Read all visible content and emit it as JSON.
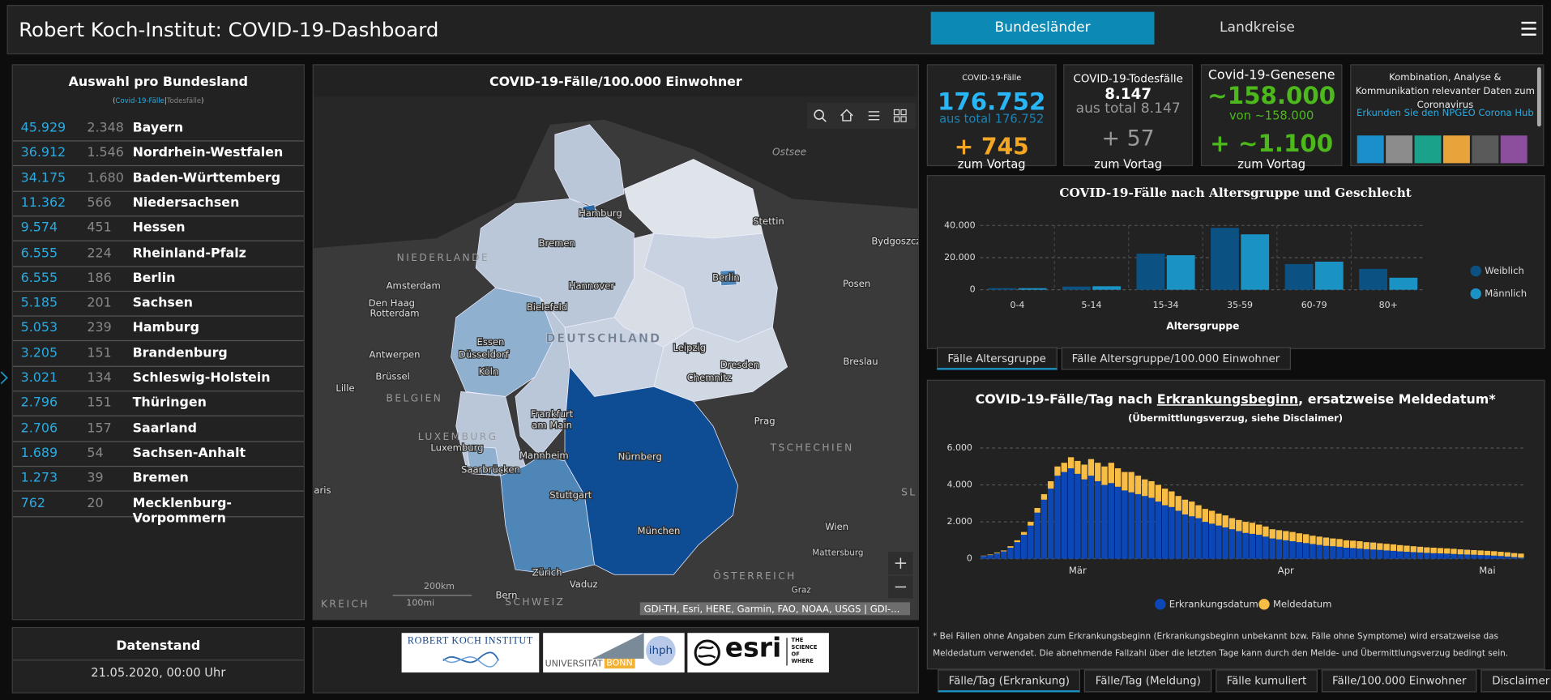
{
  "header": {
    "title": "Robert Koch-Institut: COVID-19-Dashboard",
    "tabs": [
      "Bundesländer",
      "Landkreise"
    ]
  },
  "state_list": {
    "title": "Auswahl pro Bundesland",
    "legend": [
      "(",
      "Covid-19-Fälle",
      "|",
      "Todesfälle",
      ")"
    ],
    "rows": [
      [
        "45.929",
        "2.348",
        "Bayern"
      ],
      [
        "36.912",
        "1.546",
        "Nordrhein-Westfalen"
      ],
      [
        "34.175",
        "1.680",
        "Baden-Württemberg"
      ],
      [
        "11.362",
        "566",
        "Niedersachsen"
      ],
      [
        "9.574",
        "451",
        "Hessen"
      ],
      [
        "6.555",
        "224",
        "Rheinland-Pfalz"
      ],
      [
        "6.555",
        "186",
        "Berlin"
      ],
      [
        "5.185",
        "201",
        "Sachsen"
      ],
      [
        "5.053",
        "239",
        "Hamburg"
      ],
      [
        "3.205",
        "151",
        "Brandenburg"
      ],
      [
        "3.021",
        "134",
        "Schleswig-Holstein"
      ],
      [
        "2.796",
        "151",
        "Thüringen"
      ],
      [
        "2.706",
        "157",
        "Saarland"
      ],
      [
        "1.689",
        "54",
        "Sachsen-Anhalt"
      ],
      [
        "1.273",
        "39",
        "Bremen"
      ],
      [
        "762",
        "20",
        "Mecklenburg-Vorpommern"
      ]
    ]
  },
  "status": {
    "title": "Datenstand",
    "value": "21.05.2020, 00:00 Uhr"
  },
  "map": {
    "title": "COVID-19-Fälle/100.000 Einwohner",
    "labels": [
      "Ostsee",
      "Hamburg",
      "Stettin",
      "Bydgoszcz",
      "Bremen",
      "NIEDERLANDE",
      "Berlin",
      "Amsterdam",
      "Hannover",
      "Posen",
      "Den Haag",
      "Rotterdam",
      "Bielefeld",
      "Essen",
      "DEUTSCHLAND",
      "Düsseldorf",
      "Leipzig",
      "Antwerpen",
      "Köln",
      "Dresden",
      "Breslau",
      "Brüssel",
      "Chemnitz",
      "Lille",
      "BELGIEN",
      "Frankfurt",
      "am Main",
      "Prag",
      "LUXEMBURG",
      "Luxemburg",
      "TSCHECHIEN",
      "Mannheim",
      "Nürnberg",
      "Saarbrücken",
      "Stuttgart",
      "Wien",
      "München",
      "Mattersburg",
      "Zürich",
      "ÖSTERREICH",
      "Vaduz",
      "Graz",
      "Bern",
      "SCHWEIZ",
      "KREICH",
      "aris",
      "SL"
    ],
    "scale": [
      "200km",
      "100mi"
    ],
    "attribution": "GDI-TH, Esri, HERE, Garmin, FAO, NOAA, USGS | GDI-..."
  },
  "logos": {
    "rki": "ROBERT KOCH INSTITUT",
    "bonn": [
      "UNIVERSITÄT",
      "BONN"
    ],
    "ihph": "ihph",
    "esri": "esri",
    "esri_tagline": [
      "THE",
      "SCIENCE",
      "OF",
      "WHERE"
    ]
  },
  "kpis": [
    {
      "title": "COVID-19-Fälle",
      "value": "176.752",
      "total": "aus total 176.752",
      "delta": "+ 745",
      "delta_label": "zum Vortag"
    },
    {
      "title": "COVID-19-Todesfälle",
      "value": "8.147",
      "total": "aus total 8.147",
      "delta": "+ 57",
      "delta_label": "zum Vortag"
    },
    {
      "title": "Covid-19-Genesene",
      "value": "~158.000",
      "total": "von ~158.000",
      "delta": "+ ~1.100",
      "delta_label": "zum Vortag"
    }
  ],
  "info": {
    "text": "Kombination, Analyse & Kommunikation relevanter Daten zum Coronavirus",
    "link": "Erkunden Sie den NPGEO Corona Hub"
  },
  "chart_data": [
    {
      "type": "bar",
      "title": "COVID-19-Fälle nach Altersgruppe und Geschlecht",
      "categories": [
        "0-4",
        "5-14",
        "15-34",
        "35-59",
        "60-79",
        "80+"
      ],
      "series": [
        {
          "name": "Weiblich",
          "color": "#0b5283",
          "values": [
            1000,
            2000,
            22500,
            38500,
            16000,
            13000
          ]
        },
        {
          "name": "Männlich",
          "color": "#1b92c4",
          "values": [
            1000,
            2200,
            21500,
            34500,
            17500,
            7500
          ]
        }
      ],
      "ylim": [
        0,
        40000
      ],
      "yticks": [
        0,
        {
          "value": 20000,
          "label": "20.000"
        },
        {
          "value": 40000,
          "label": "40.000"
        }
      ],
      "xlabel": "Altersgruppe",
      "grid": true,
      "legend": "right"
    },
    {
      "type": "stacked_bar",
      "title": [
        "COVID-19-Fälle/Tag nach ",
        "Erkrankungsbeginn",
        ", ersatzweise Meldedatum*"
      ],
      "subtitle": "(Übermittlungsverzug, siehe Disclaimer)",
      "categories": [
        null,
        null,
        null,
        null,
        null,
        null,
        null,
        null,
        null,
        null,
        null,
        null,
        null,
        null,
        "Mär",
        null,
        null,
        null,
        null,
        null,
        null,
        null,
        null,
        null,
        null,
        null,
        null,
        null,
        null,
        null,
        null,
        null,
        null,
        null,
        null,
        null,
        null,
        null,
        null,
        null,
        null,
        null,
        null,
        null,
        null,
        "Apr",
        null,
        null,
        null,
        null,
        null,
        null,
        null,
        null,
        null,
        null,
        null,
        null,
        null,
        null,
        null,
        null,
        null,
        null,
        null,
        null,
        null,
        null,
        null,
        null,
        null,
        null,
        null,
        null,
        null,
        "Mai",
        null,
        null,
        null,
        null,
        null
      ],
      "series": [
        {
          "name": "Erkrankungsdatum",
          "color": "#0c47b7",
          "values": [
            150,
            200,
            300,
            400,
            600,
            900,
            1300,
            1800,
            2500,
            3200,
            3800,
            4500,
            4700,
            4900,
            4600,
            4300,
            4500,
            4200,
            4000,
            4100,
            3900,
            3700,
            3600,
            3500,
            3400,
            3300,
            3100,
            2900,
            2800,
            2600,
            2400,
            2300,
            2200,
            2000,
            1900,
            1800,
            1700,
            1600,
            1500,
            1400,
            1350,
            1300,
            1200,
            1100,
            1050,
            1000,
            950,
            900,
            850,
            800,
            750,
            700,
            680,
            650,
            600,
            580,
            550,
            520,
            500,
            480,
            450,
            430,
            400,
            380,
            360,
            340,
            320,
            300,
            290,
            280,
            260,
            240,
            230,
            220,
            200,
            190,
            170,
            150,
            120,
            90,
            60
          ]
        },
        {
          "name": "Meldedatum",
          "color": "#f7bd45",
          "values": [
            20,
            30,
            40,
            50,
            80,
            100,
            150,
            200,
            250,
            300,
            400,
            500,
            500,
            600,
            700,
            800,
            900,
            1000,
            1000,
            1100,
            1000,
            1000,
            1100,
            1000,
            900,
            900,
            900,
            900,
            850,
            800,
            800,
            800,
            700,
            700,
            700,
            650,
            650,
            600,
            600,
            600,
            600,
            550,
            550,
            500,
            500,
            500,
            500,
            480,
            480,
            450,
            450,
            450,
            420,
            420,
            400,
            400,
            400,
            380,
            380,
            360,
            360,
            350,
            340,
            330,
            320,
            310,
            300,
            300,
            290,
            280,
            280,
            270,
            260,
            250,
            250,
            240,
            240,
            230,
            230,
            220,
            220
          ]
        }
      ],
      "ylim": [
        0,
        6000
      ],
      "yticks": [
        0,
        {
          "value": 2000,
          "label": "2.000"
        },
        {
          "value": 4000,
          "label": "4.000"
        },
        {
          "value": 6000,
          "label": "6.000"
        }
      ],
      "grid": true,
      "legend": "bottom",
      "footnote": "* Bei Fällen ohne Angaben zum Erkrankungsbeginn (Erkrankungsbeginn unbekannt bzw. Fälle ohne Symptome) wird ersatzweise das Meldedatum verwendet. Die abnehmende Fallzahl über die letzten Tage kann durch den Melde- und Übermittlungsverzug bedingt sein."
    }
  ],
  "age_tabs": [
    "Fälle Altersgruppe",
    "Fälle Altersgruppe/100.000 Einwohner"
  ],
  "epi_tabs": [
    "Fälle/Tag (Erkrankung)",
    "Fälle/Tag (Meldung)",
    "Fälle kumuliert",
    "Fälle/100.000 Einwohner",
    "Disclaimer"
  ]
}
